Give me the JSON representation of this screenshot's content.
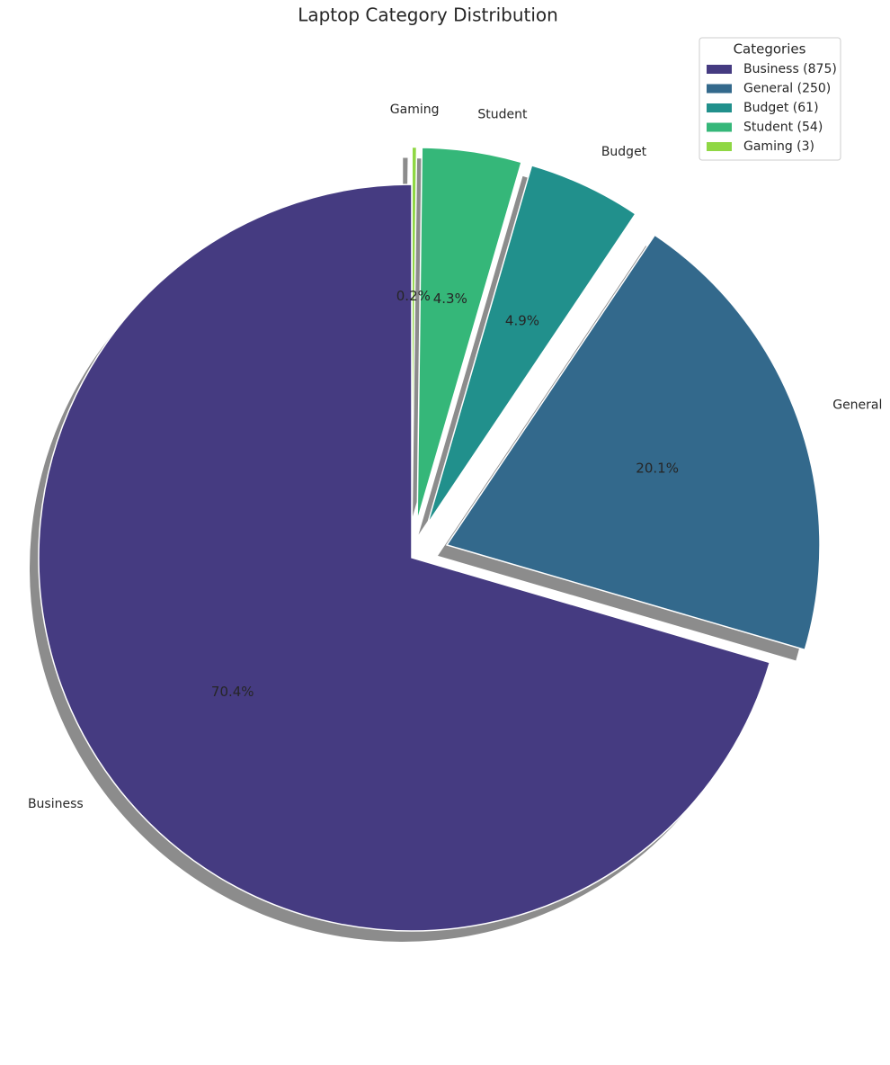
{
  "chart_data": {
    "type": "pie",
    "title": "Laptop Category Distribution",
    "categories": [
      "Business",
      "General",
      "Budget",
      "Student",
      "Gaming"
    ],
    "values": [
      70.4,
      20.1,
      4.9,
      4.3,
      0.2
    ],
    "value_labels": [
      "70.4%",
      "20.1%",
      "4.9%",
      "4.3%",
      "0.2%"
    ],
    "colors": [
      "#453b81",
      "#33698c",
      "#21908c",
      "#35b779",
      "#8fd744"
    ],
    "explode": [
      0,
      0.1,
      0.1,
      0.1,
      0.1
    ],
    "shadow": true,
    "legend_title": "Categories",
    "legend_labels": [
      "Business (875)",
      "General (250)",
      "Budget (61)",
      "Student (54)",
      "Gaming (3)"
    ],
    "legend_position": "upper right"
  }
}
